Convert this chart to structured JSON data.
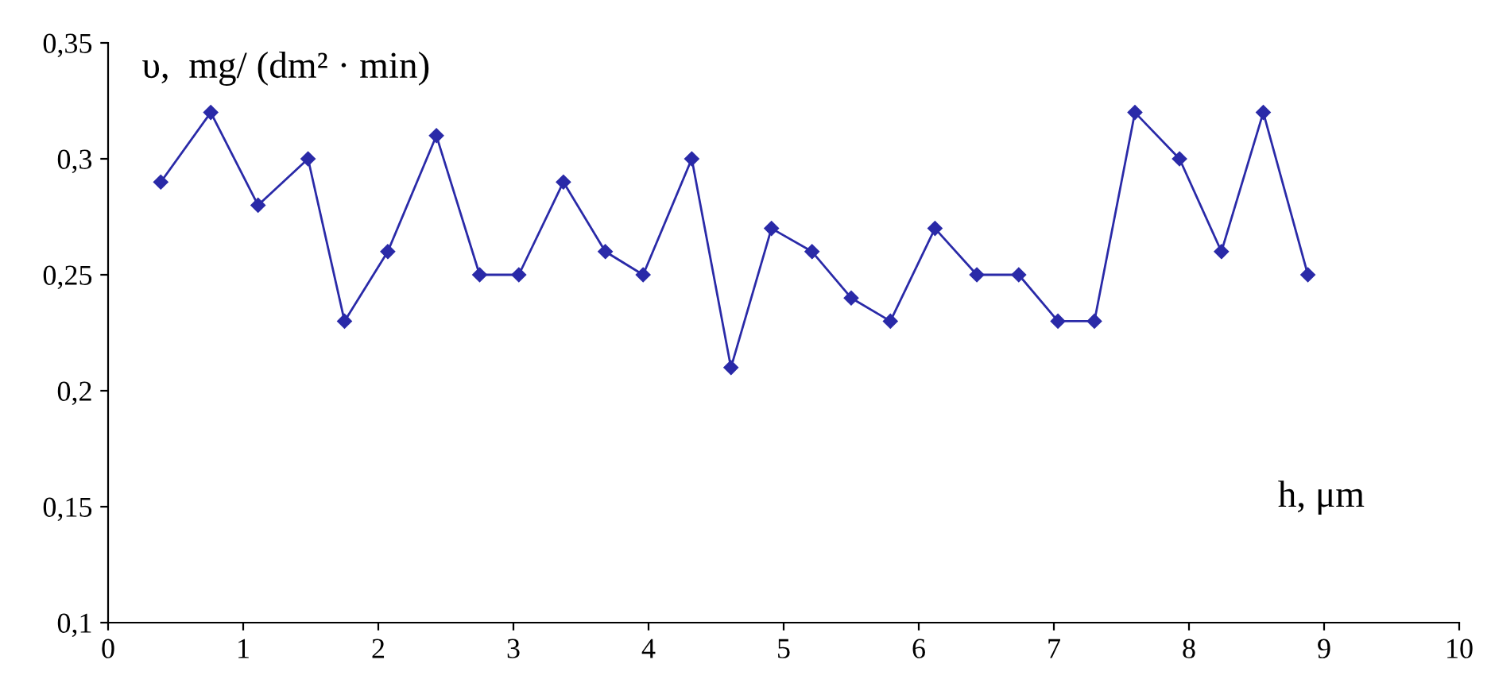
{
  "chart_data": {
    "type": "line",
    "xlabel": "h, μm",
    "ylabel": "υ,  mg/ (dm² · min)",
    "x": [
      0.39,
      0.76,
      1.11,
      1.48,
      1.75,
      2.07,
      2.43,
      2.75,
      3.04,
      3.37,
      3.68,
      3.96,
      4.32,
      4.61,
      4.91,
      5.21,
      5.5,
      5.79,
      6.12,
      6.43,
      6.74,
      7.03,
      7.3,
      7.6,
      7.93,
      8.24,
      8.55,
      8.88
    ],
    "series": [
      {
        "color": "#2a2aa8",
        "values": [
          0.29,
          0.32,
          0.28,
          0.3,
          0.23,
          0.26,
          0.31,
          0.25,
          0.25,
          0.29,
          0.26,
          0.25,
          0.3,
          0.21,
          0.27,
          0.26,
          0.24,
          0.23,
          0.27,
          0.25,
          0.25,
          0.23,
          0.23,
          0.32,
          0.3,
          0.26,
          0.32,
          0.25
        ]
      }
    ],
    "xlim": [
      0,
      10
    ],
    "xticks": [
      0,
      1,
      2,
      3,
      4,
      5,
      6,
      7,
      8,
      9,
      10
    ],
    "ylim": [
      0.1,
      0.35
    ],
    "yticks": [
      {
        "value": 0.1,
        "label": "0,1"
      },
      {
        "value": 0.15,
        "label": "0,15"
      },
      {
        "value": 0.2,
        "label": "0,2"
      },
      {
        "value": 0.25,
        "label": "0,25"
      },
      {
        "value": 0.3,
        "label": "0,3"
      },
      {
        "value": 0.35,
        "label": "0,35"
      }
    ],
    "marker": "diamond",
    "line_style": "solid",
    "grid": false,
    "legend": false
  }
}
